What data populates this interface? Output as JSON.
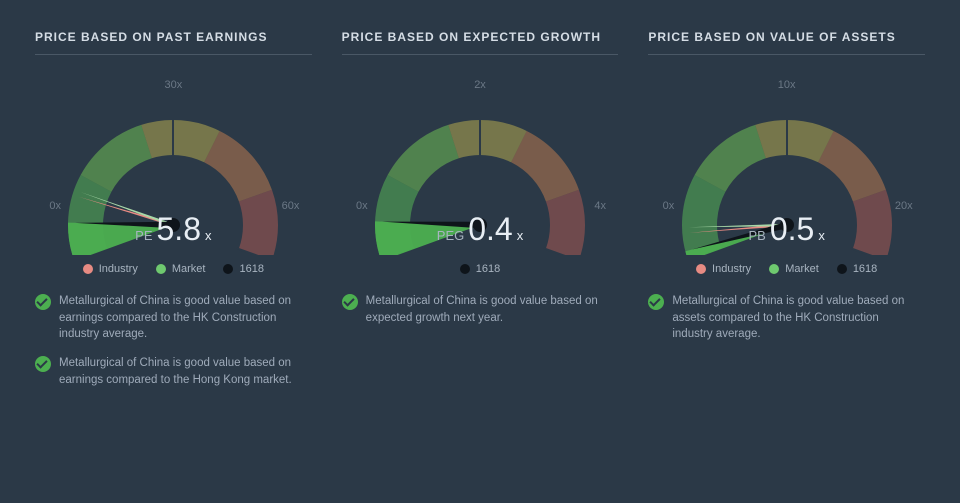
{
  "background_color": "#2b3947",
  "panels": [
    {
      "title": "PRICE BASED ON PAST EARNINGS",
      "gauge": {
        "max": 60,
        "tick_left": "0x",
        "tick_top": "30x",
        "tick_right": "60x",
        "metric_label": "PE",
        "metric_value": "5.8",
        "needles": {
          "industry": 10.0,
          "market": 10.8,
          "main": 5.8
        }
      },
      "legend": [
        {
          "label": "Industry",
          "color": "#e78b83"
        },
        {
          "label": "Market",
          "color": "#6fc96f"
        },
        {
          "label": "1618",
          "color": "#0e141a"
        }
      ],
      "notes": [
        "Metallurgical of China is good value based on earnings compared to the HK Construction industry average.",
        "Metallurgical of China is good value based on earnings compared to the Hong Kong market."
      ]
    },
    {
      "title": "PRICE BASED ON EXPECTED GROWTH",
      "gauge": {
        "max": 4,
        "tick_left": "0x",
        "tick_top": "2x",
        "tick_right": "4x",
        "metric_label": "PEG",
        "metric_value": "0.4",
        "needles": {
          "main": 0.4
        }
      },
      "legend": [
        {
          "label": "1618",
          "color": "#0e141a"
        }
      ],
      "notes": [
        "Metallurgical of China is good value based on expected growth next year."
      ]
    },
    {
      "title": "PRICE BASED ON VALUE OF ASSETS",
      "gauge": {
        "max": 20,
        "tick_left": "0x",
        "tick_top": "10x",
        "tick_right": "20x",
        "metric_label": "PB",
        "metric_value": "0.5",
        "needles": {
          "industry": 1.4,
          "market": 1.7,
          "main": 0.5
        }
      },
      "legend": [
        {
          "label": "Industry",
          "color": "#e78b83"
        },
        {
          "label": "Market",
          "color": "#6fc96f"
        },
        {
          "label": "1618",
          "color": "#0e141a"
        }
      ],
      "notes": [
        "Metallurgical of China is good value based on assets compared to the HK Construction industry average."
      ]
    }
  ],
  "gauge_style": {
    "arc_stops": [
      {
        "at": 0.0,
        "color": "#56b556"
      },
      {
        "at": 0.22,
        "color": "#6fbf54"
      },
      {
        "at": 0.42,
        "color": "#b5a94e"
      },
      {
        "at": 0.62,
        "color": "#b97a4e"
      },
      {
        "at": 0.82,
        "color": "#a85a52"
      },
      {
        "at": 1.0,
        "color": "#8e4650"
      }
    ],
    "arc_opacity": 0.55,
    "wedge_color": "#4caf50",
    "needle_colors": {
      "industry": "#e78b83",
      "market": "#a8d8a8",
      "main": "#0e141a"
    },
    "hub_color": "#0e141a"
  }
}
